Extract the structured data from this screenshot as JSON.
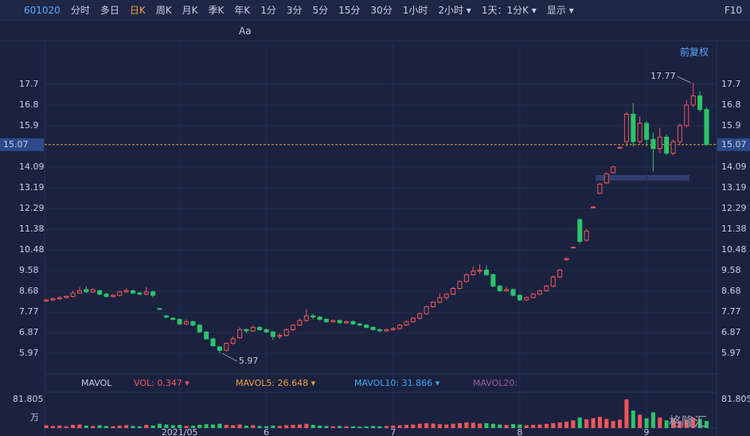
{
  "toolbar": {
    "code": "601020",
    "items": [
      "分时",
      "多日",
      "日K",
      "周K",
      "月K",
      "季K",
      "年K",
      "1分",
      "3分",
      "5分",
      "15分",
      "30分",
      "1小时",
      "2小时 ▾",
      "1天：1分K ▾",
      "显示 ▾"
    ],
    "active": 2,
    "right": "F10"
  },
  "tools": {
    "text_tool": "Aa",
    "adjust": "前复权"
  },
  "chart_data": {
    "type": "candlestick",
    "candles": [
      [
        8.25,
        8.35,
        8.2,
        8.3
      ],
      [
        8.3,
        8.4,
        8.25,
        8.35
      ],
      [
        8.35,
        8.45,
        8.3,
        8.4
      ],
      [
        8.4,
        8.5,
        8.35,
        8.45
      ],
      [
        8.45,
        8.7,
        8.4,
        8.6
      ],
      [
        8.6,
        8.85,
        8.55,
        8.7
      ],
      [
        8.75,
        8.9,
        8.6,
        8.65
      ],
      [
        8.65,
        8.8,
        8.6,
        8.75
      ],
      [
        8.7,
        8.75,
        8.5,
        8.55
      ],
      [
        8.55,
        8.6,
        8.4,
        8.45
      ],
      [
        8.45,
        8.55,
        8.4,
        8.5
      ],
      [
        8.5,
        8.7,
        8.45,
        8.65
      ],
      [
        8.65,
        8.8,
        8.6,
        8.7
      ],
      [
        8.7,
        8.75,
        8.55,
        8.6
      ],
      [
        8.6,
        8.65,
        8.5,
        8.55
      ],
      [
        8.55,
        8.85,
        8.5,
        8.65
      ],
      [
        8.65,
        8.7,
        8.4,
        8.5
      ],
      [
        7.92,
        7.95,
        7.88,
        7.9
      ],
      [
        7.6,
        7.65,
        7.5,
        7.55
      ],
      [
        7.5,
        7.55,
        7.4,
        7.45
      ],
      [
        7.45,
        7.5,
        7.2,
        7.25
      ],
      [
        7.25,
        7.45,
        7.2,
        7.35
      ],
      [
        7.35,
        7.4,
        7.15,
        7.2
      ],
      [
        7.2,
        7.25,
        6.85,
        6.9
      ],
      [
        6.9,
        6.95,
        6.55,
        6.6
      ],
      [
        6.6,
        6.65,
        6.25,
        6.3
      ],
      [
        6.25,
        6.3,
        5.97,
        6.1
      ],
      [
        6.1,
        6.45,
        6.05,
        6.4
      ],
      [
        6.4,
        6.7,
        6.35,
        6.6
      ],
      [
        6.65,
        7.1,
        6.6,
        7.0
      ],
      [
        7.0,
        7.05,
        6.85,
        6.95
      ],
      [
        6.95,
        7.2,
        6.9,
        7.1
      ],
      [
        7.1,
        7.15,
        6.95,
        7.0
      ],
      [
        7.0,
        7.05,
        6.85,
        6.9
      ],
      [
        6.9,
        6.95,
        6.55,
        6.7
      ],
      [
        6.7,
        6.85,
        6.6,
        6.75
      ],
      [
        6.75,
        7.05,
        6.7,
        7.0
      ],
      [
        7.0,
        7.25,
        6.95,
        7.2
      ],
      [
        7.2,
        7.5,
        7.15,
        7.4
      ],
      [
        7.4,
        7.9,
        7.35,
        7.6
      ],
      [
        7.6,
        7.7,
        7.45,
        7.55
      ],
      [
        7.55,
        7.6,
        7.4,
        7.45
      ],
      [
        7.45,
        7.5,
        7.3,
        7.35
      ],
      [
        7.35,
        7.45,
        7.3,
        7.4
      ],
      [
        7.4,
        7.45,
        7.25,
        7.3
      ],
      [
        7.3,
        7.4,
        7.25,
        7.35
      ],
      [
        7.35,
        7.4,
        7.2,
        7.25
      ],
      [
        7.25,
        7.3,
        7.15,
        7.2
      ],
      [
        7.2,
        7.25,
        7.05,
        7.1
      ],
      [
        7.1,
        7.15,
        6.95,
        7.0
      ],
      [
        7.0,
        7.05,
        6.9,
        6.95
      ],
      [
        6.95,
        7.05,
        6.9,
        7.0
      ],
      [
        7.0,
        7.1,
        6.95,
        7.05
      ],
      [
        7.05,
        7.25,
        7.0,
        7.2
      ],
      [
        7.2,
        7.4,
        7.15,
        7.35
      ],
      [
        7.35,
        7.55,
        7.3,
        7.5
      ],
      [
        7.5,
        7.75,
        7.45,
        7.7
      ],
      [
        7.7,
        8.05,
        7.65,
        8.0
      ],
      [
        8.0,
        8.25,
        7.95,
        8.2
      ],
      [
        8.2,
        8.6,
        8.15,
        8.4
      ],
      [
        8.4,
        8.6,
        8.3,
        8.55
      ],
      [
        8.55,
        8.85,
        8.5,
        8.8
      ],
      [
        8.8,
        9.15,
        8.75,
        9.1
      ],
      [
        9.1,
        9.45,
        9.05,
        9.4
      ],
      [
        9.4,
        9.75,
        9.35,
        9.55
      ],
      [
        9.55,
        9.85,
        9.45,
        9.6
      ],
      [
        9.6,
        9.8,
        9.35,
        9.4
      ],
      [
        9.4,
        9.45,
        8.85,
        8.9
      ],
      [
        8.9,
        8.95,
        8.65,
        8.7
      ],
      [
        8.7,
        8.85,
        8.65,
        8.75
      ],
      [
        8.75,
        8.8,
        8.45,
        8.5
      ],
      [
        8.5,
        8.55,
        8.25,
        8.3
      ],
      [
        8.3,
        8.45,
        8.25,
        8.4
      ],
      [
        8.4,
        8.6,
        8.35,
        8.55
      ],
      [
        8.55,
        8.75,
        8.5,
        8.7
      ],
      [
        8.7,
        8.95,
        8.65,
        8.9
      ],
      [
        8.9,
        9.35,
        8.85,
        9.3
      ],
      [
        9.3,
        9.65,
        9.25,
        9.6
      ],
      [
        10.05,
        10.15,
        10.0,
        10.1
      ],
      [
        10.6,
        10.62,
        10.58,
        10.6
      ],
      [
        11.8,
        11.85,
        10.75,
        10.85
      ],
      [
        10.9,
        11.4,
        10.85,
        11.3
      ],
      [
        12.35,
        12.4,
        12.3,
        12.35
      ],
      [
        12.95,
        13.4,
        12.9,
        13.35
      ],
      [
        13.4,
        13.85,
        13.35,
        13.8
      ],
      [
        13.85,
        14.15,
        13.8,
        14.1
      ],
      [
        14.95,
        15.0,
        14.9,
        14.95
      ],
      [
        15.2,
        16.5,
        15.0,
        16.4
      ],
      [
        16.4,
        16.9,
        15.0,
        15.2
      ],
      [
        15.2,
        16.3,
        15.1,
        16.0
      ],
      [
        16.0,
        16.1,
        15.0,
        15.3
      ],
      [
        15.3,
        15.6,
        13.9,
        14.9
      ],
      [
        14.9,
        15.8,
        14.7,
        15.4
      ],
      [
        15.4,
        15.5,
        14.6,
        14.7
      ],
      [
        14.7,
        15.3,
        14.6,
        15.2
      ],
      [
        15.2,
        16.0,
        15.1,
        15.9
      ],
      [
        15.9,
        17.0,
        15.8,
        16.8
      ],
      [
        16.8,
        17.77,
        16.7,
        17.2
      ],
      [
        17.2,
        17.4,
        16.5,
        16.6
      ],
      [
        16.6,
        16.7,
        15.07,
        15.07
      ]
    ],
    "volume": [
      8,
      6,
      7,
      5,
      9,
      10,
      7,
      6,
      8,
      6,
      5,
      7,
      8,
      6,
      5,
      9,
      7,
      12,
      10,
      8,
      9,
      6,
      7,
      9,
      11,
      10,
      12,
      9,
      8,
      10,
      7,
      8,
      6,
      5,
      7,
      6,
      8,
      9,
      10,
      12,
      9,
      7,
      6,
      5,
      6,
      5,
      5,
      4,
      5,
      6,
      5,
      6,
      7,
      8,
      9,
      10,
      12,
      14,
      13,
      11,
      10,
      12,
      14,
      16,
      15,
      13,
      14,
      12,
      10,
      9,
      11,
      10,
      8,
      9,
      10,
      12,
      14,
      16,
      18,
      22,
      30,
      25,
      28,
      32,
      26,
      20,
      24,
      81.805,
      50,
      38,
      28,
      45,
      30,
      22,
      25,
      20,
      24,
      30,
      26,
      20
    ],
    "ylim": [
      5.07,
      19.47
    ],
    "yticks": [
      17.7,
      16.8,
      15.9,
      14.09,
      13.19,
      12.29,
      11.38,
      10.48,
      9.58,
      8.68,
      7.77,
      6.87,
      5.97
    ],
    "xlim": [
      -0.25,
      100.5
    ],
    "xticks": [
      {
        "value": 20,
        "label": "2021/05"
      },
      {
        "value": 33,
        "label": "6"
      },
      {
        "value": 52,
        "label": "7"
      },
      {
        "value": 71,
        "label": "8"
      },
      {
        "value": 90,
        "label": "9"
      }
    ],
    "last_price": 15.07,
    "high_label": 17.77,
    "high_index": 97,
    "low_label": 5.97,
    "low_index": 26,
    "vol_ylim": [
      0,
      81.805
    ],
    "vol_yticks": [
      81.805
    ],
    "vol_unit": "万",
    "indicators": [
      {
        "text": "MAVOL",
        "color": "#c8cde0"
      },
      {
        "text": "VOL: 0.347 ▾",
        "color": "#f0565a"
      },
      {
        "text": "MAVOL5: 26.648 ▾",
        "color": "#f0a040"
      },
      {
        "text": "MAVOL10: 31.866 ▾",
        "color": "#3fa9f5"
      },
      {
        "text": "MAVOL20:",
        "color": "#a05aa0"
      }
    ],
    "up_color": "#f0565a",
    "down_color": "#2bc46a",
    "grid": true
  },
  "watermark": "格隆汇"
}
